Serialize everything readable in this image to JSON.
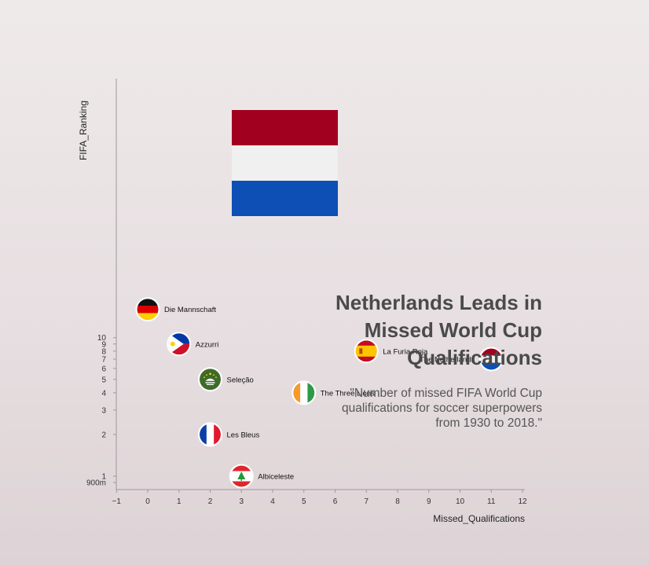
{
  "chart_data": {
    "type": "scatter",
    "title_lines": [
      "Netherlands Leads in",
      "Missed World Cup",
      "Qualifications"
    ],
    "subtitle_lines": [
      "\"Number of missed FIFA World Cup",
      "qualifications for soccer superpowers",
      "from 1930 to 2018.\""
    ],
    "xlabel": "Missed_Qualifications",
    "ylabel": "FIFA_Ranking",
    "xlim": [
      -1,
      12
    ],
    "ylim": [
      0.9,
      20
    ],
    "y_scale": "log",
    "grid": false,
    "x_ticks": [
      "−1",
      "0",
      "1",
      "2",
      "3",
      "4",
      "5",
      "6",
      "7",
      "8",
      "9",
      "10",
      "11",
      "12"
    ],
    "x_tick_values": [
      -1,
      0,
      1,
      2,
      3,
      4,
      5,
      6,
      7,
      8,
      9,
      10,
      11,
      12
    ],
    "y_ticks": [
      "900m",
      "1",
      "2",
      "3",
      "4",
      "5",
      "6",
      "7",
      "8",
      "9",
      "10"
    ],
    "y_tick_values": [
      0.9,
      1,
      2,
      3,
      4,
      5,
      6,
      7,
      8,
      9,
      10
    ],
    "points": [
      {
        "label": "Die Mannschaft",
        "x": 0,
        "y": 16,
        "flag": "germany-flag-icon",
        "label_side": "right"
      },
      {
        "label": "Azzurri",
        "x": 1,
        "y": 9,
        "flag": "philippines-flag-icon",
        "label_side": "right"
      },
      {
        "label": "La Furia Roja",
        "x": 7,
        "y": 8,
        "flag": "spain-flag-icon",
        "label_side": "right"
      },
      {
        "label": "The Netherlands",
        "x": 11,
        "y": 7,
        "flag": "netherlands-flag-icon",
        "label_side": "left"
      },
      {
        "label": "Seleção",
        "x": 2,
        "y": 5,
        "flag": "macau-flag-icon",
        "label_side": "right"
      },
      {
        "label": "The Three Lions",
        "x": 5,
        "y": 4,
        "flag": "ivory-coast-flag-icon",
        "label_side": "right"
      },
      {
        "label": "Les Bleus",
        "x": 2,
        "y": 2,
        "flag": "france-flag-icon",
        "label_side": "right"
      },
      {
        "label": "Albiceleste",
        "x": 3,
        "y": 1,
        "flag": "lebanon-flag-icon",
        "label_side": "right"
      }
    ],
    "featured_flag": {
      "icon": "netherlands-flag-icon",
      "colors": [
        "#a1001f",
        "#f0f0f0",
        "#0d4fb5"
      ]
    }
  }
}
